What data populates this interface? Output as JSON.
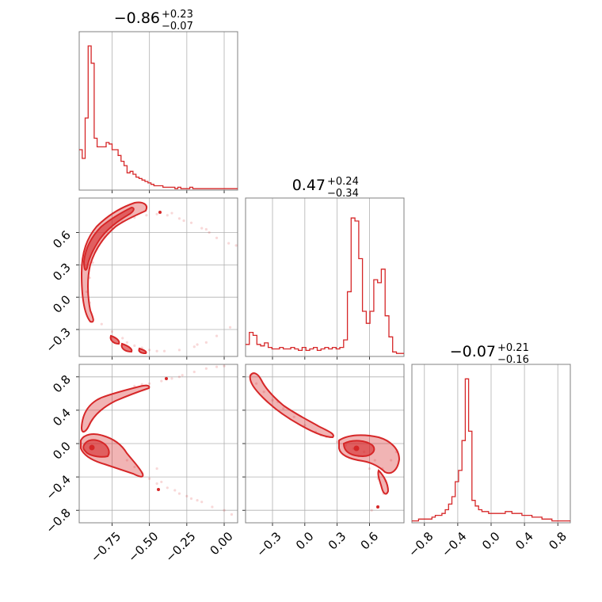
{
  "chart_data": {
    "type": "corner",
    "color": "#d62728",
    "parameters": [
      {
        "title_value": "−0.86",
        "plus": "+0.23",
        "minus": "−0.07",
        "range": [
          -0.97,
          0.09
        ]
      },
      {
        "title_value": "0.47",
        "plus": "+0.24",
        "minus": "−0.34",
        "range": [
          -0.55,
          0.92
        ]
      },
      {
        "title_value": "−0.07",
        "plus": "+0.21",
        "minus": "−0.16",
        "range": [
          -0.95,
          0.95
        ]
      }
    ],
    "ticks": {
      "p0": [
        {
          "v": -0.75,
          "label": "−0.75"
        },
        {
          "v": -0.5,
          "label": "−0.50"
        },
        {
          "v": -0.25,
          "label": "−0.25"
        },
        {
          "v": 0.0,
          "label": "0.00"
        }
      ],
      "p1": [
        {
          "v": -0.3,
          "label": "−0.3"
        },
        {
          "v": 0.0,
          "label": "0.0"
        },
        {
          "v": 0.3,
          "label": "0.3"
        },
        {
          "v": 0.6,
          "label": "0.6"
        }
      ],
      "p2": [
        {
          "v": -0.8,
          "label": "−0.8"
        },
        {
          "v": -0.4,
          "label": "−0.4"
        },
        {
          "v": 0.0,
          "label": "0.0"
        },
        {
          "v": 0.4,
          "label": "0.4"
        },
        {
          "v": 0.8,
          "label": "0.8"
        }
      ]
    },
    "hist_0": {
      "x_start": -0.97,
      "bin_width": 0.02,
      "counts": [
        0.28,
        0.22,
        0.5,
        1.0,
        0.88,
        0.36,
        0.3,
        0.3,
        0.3,
        0.33,
        0.32,
        0.28,
        0.28,
        0.24,
        0.2,
        0.17,
        0.12,
        0.13,
        0.11,
        0.09,
        0.08,
        0.07,
        0.06,
        0.05,
        0.04,
        0.03,
        0.03,
        0.03,
        0.02,
        0.02,
        0.02,
        0.02,
        0.01,
        0.02,
        0.01,
        0.01,
        0.01,
        0.02,
        0.01,
        0.01,
        0.01,
        0.01,
        0.01,
        0.01,
        0.01,
        0.01,
        0.01,
        0.01,
        0.01,
        0.01,
        0.01,
        0.01,
        0.01
      ]
    },
    "hist_1": {
      "x_start": -0.55,
      "bin_width": 0.035,
      "counts": [
        0.08,
        0.16,
        0.14,
        0.08,
        0.07,
        0.09,
        0.06,
        0.05,
        0.05,
        0.06,
        0.05,
        0.05,
        0.06,
        0.05,
        0.04,
        0.06,
        0.04,
        0.05,
        0.06,
        0.04,
        0.05,
        0.06,
        0.05,
        0.06,
        0.05,
        0.06,
        0.11,
        0.43,
        0.92,
        0.9,
        0.65,
        0.3,
        0.22,
        0.3,
        0.51,
        0.49,
        0.58,
        0.27,
        0.13,
        0.03,
        0.02,
        0.02
      ]
    },
    "hist_2": {
      "x_start": -0.95,
      "bin_width": 0.04,
      "counts": [
        0.01,
        0.01,
        0.02,
        0.02,
        0.02,
        0.02,
        0.03,
        0.04,
        0.04,
        0.05,
        0.07,
        0.1,
        0.14,
        0.22,
        0.28,
        0.44,
        0.77,
        0.49,
        0.12,
        0.09,
        0.07,
        0.06,
        0.06,
        0.05,
        0.05,
        0.05,
        0.05,
        0.05,
        0.06,
        0.06,
        0.05,
        0.05,
        0.05,
        0.04,
        0.04,
        0.04,
        0.03,
        0.03,
        0.03,
        0.02,
        0.02,
        0.02,
        0.01,
        0.01,
        0.01,
        0.01,
        0.01,
        0.01
      ]
    },
    "scatter_10": [
      [
        -0.9,
        0.18
      ],
      [
        -0.88,
        0.32
      ],
      [
        -0.85,
        0.45
      ],
      [
        -0.8,
        0.56
      ],
      [
        -0.75,
        0.64
      ],
      [
        -0.68,
        0.7
      ],
      [
        -0.6,
        0.74
      ],
      [
        -0.52,
        0.76
      ],
      [
        -0.45,
        0.77
      ],
      [
        -0.38,
        0.76
      ],
      [
        -0.3,
        0.73
      ],
      [
        -0.22,
        0.69
      ],
      [
        -0.15,
        0.64
      ],
      [
        -0.1,
        0.6
      ],
      [
        -0.05,
        0.55
      ],
      [
        0.03,
        0.5
      ],
      [
        0.08,
        0.48
      ],
      [
        0.04,
        -0.28
      ],
      [
        -0.05,
        -0.36
      ],
      [
        -0.12,
        -0.42
      ],
      [
        -0.2,
        -0.46
      ],
      [
        -0.3,
        -0.49
      ],
      [
        -0.4,
        -0.5
      ],
      [
        -0.5,
        -0.49
      ],
      [
        -0.6,
        -0.45
      ],
      [
        -0.68,
        -0.38
      ],
      [
        -0.75,
        -0.32
      ],
      [
        -0.82,
        -0.25
      ],
      [
        -0.9,
        -0.05
      ],
      [
        -0.92,
        0.05
      ],
      [
        -0.35,
        0.78
      ],
      [
        -0.27,
        0.71
      ],
      [
        -0.12,
        0.63
      ],
      [
        -0.55,
        -0.47
      ],
      [
        -0.65,
        -0.42
      ],
      [
        -0.18,
        -0.44
      ],
      [
        -0.45,
        -0.5
      ]
    ],
    "scatter_20": [
      [
        -0.6,
        0.69
      ],
      [
        -0.55,
        0.71
      ],
      [
        -0.5,
        0.72
      ],
      [
        -0.42,
        0.75
      ],
      [
        -0.35,
        0.78
      ],
      [
        -0.28,
        0.82
      ],
      [
        -0.2,
        0.86
      ],
      [
        -0.12,
        0.9
      ],
      [
        -0.05,
        0.92
      ],
      [
        0.0,
        0.93
      ],
      [
        -0.65,
        -0.2
      ],
      [
        -0.6,
        -0.28
      ],
      [
        -0.55,
        -0.35
      ],
      [
        -0.5,
        -0.42
      ],
      [
        -0.45,
        -0.48
      ],
      [
        -0.38,
        -0.53
      ],
      [
        -0.3,
        -0.6
      ],
      [
        -0.22,
        -0.66
      ],
      [
        -0.15,
        -0.7
      ],
      [
        -0.08,
        -0.76
      ],
      [
        0.0,
        -0.8
      ],
      [
        0.05,
        -0.85
      ],
      [
        -0.42,
        -0.46
      ],
      [
        -0.33,
        -0.56
      ],
      [
        -0.25,
        -0.63
      ],
      [
        -0.18,
        -0.68
      ],
      [
        -0.3,
        0.8
      ],
      [
        -0.45,
        -0.3
      ]
    ],
    "scatter_21": [
      [
        -0.5,
        0.82
      ],
      [
        -0.45,
        0.72
      ],
      [
        -0.38,
        0.62
      ],
      [
        -0.3,
        0.52
      ],
      [
        -0.2,
        0.42
      ],
      [
        -0.1,
        0.32
      ],
      [
        0.0,
        0.22
      ],
      [
        0.1,
        0.14
      ],
      [
        0.2,
        0.08
      ],
      [
        0.3,
        0.02
      ],
      [
        0.38,
        -0.02
      ],
      [
        0.45,
        -0.06
      ],
      [
        0.55,
        -0.1
      ],
      [
        0.65,
        -0.2
      ],
      [
        0.72,
        -0.3
      ],
      [
        0.75,
        -0.45
      ],
      [
        0.73,
        -0.6
      ],
      [
        0.68,
        -0.75
      ],
      [
        0.62,
        -0.8
      ],
      [
        0.8,
        -0.2
      ],
      [
        0.85,
        -0.1
      ],
      [
        0.5,
        -0.15
      ],
      [
        0.6,
        -0.3
      ],
      [
        0.68,
        -0.42
      ],
      [
        0.15,
        0.1
      ],
      [
        -0.25,
        0.5
      ]
    ]
  }
}
